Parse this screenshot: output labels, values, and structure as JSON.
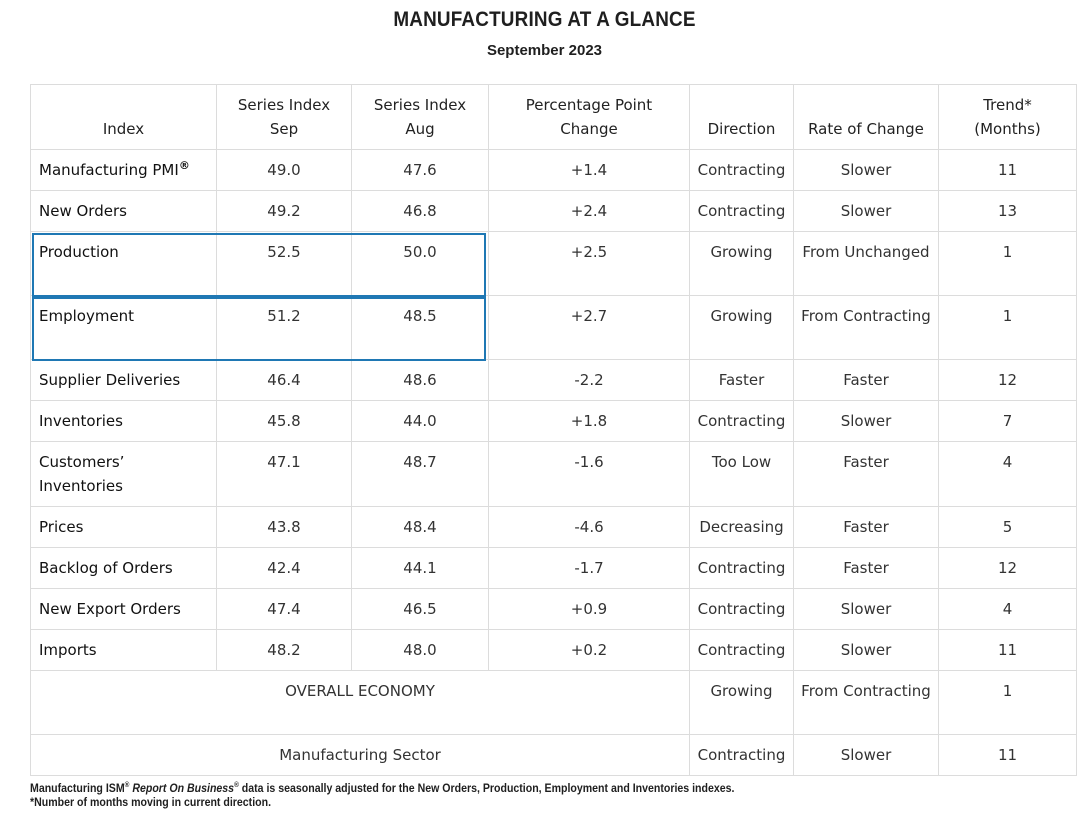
{
  "header": {
    "title": "MANUFACTURING AT A GLANCE",
    "subtitle": "September 2023"
  },
  "table": {
    "columns": {
      "index": "Index",
      "sep_line1": "Series Index",
      "sep_line2": "Sep",
      "aug_line1": "Series Index",
      "aug_line2": "Aug",
      "ppc_line1": "Percentage Point",
      "ppc_line2": "Change",
      "direction": "Direction",
      "rate": "Rate of Change",
      "trend_line1": "Trend*",
      "trend_line2": "(Months)"
    },
    "pmi": {
      "name": "Manufacturing PMI",
      "mark": "®",
      "sep": "49.0",
      "aug": "47.6",
      "change": "+1.4",
      "direction": "Contracting",
      "rate": "Slower",
      "trend": "11"
    },
    "rows": [
      {
        "name": "New Orders",
        "sep": "49.2",
        "aug": "46.8",
        "change": "+2.4",
        "direction": "Contracting",
        "rate": "Slower",
        "trend": "13"
      },
      {
        "name": "Production",
        "sep": "52.5",
        "aug": "50.0",
        "change": "+2.5",
        "direction": "Growing",
        "rate": "From Unchanged",
        "trend": "1"
      },
      {
        "name": "Employment",
        "sep": "51.2",
        "aug": "48.5",
        "change": "+2.7",
        "direction": "Growing",
        "rate": "From Contracting",
        "trend": "1"
      },
      {
        "name": "Supplier Deliveries",
        "sep": "46.4",
        "aug": "48.6",
        "change": "-2.2",
        "direction": "Faster",
        "rate": "Faster",
        "trend": "12"
      },
      {
        "name": "Inventories",
        "sep": "45.8",
        "aug": "44.0",
        "change": "+1.8",
        "direction": "Contracting",
        "rate": "Slower",
        "trend": "7"
      },
      {
        "name": "Customers’ Inventories",
        "sep": "47.1",
        "aug": "48.7",
        "change": "-1.6",
        "direction": "Too Low",
        "rate": "Faster",
        "trend": "4"
      },
      {
        "name": "Prices",
        "sep": "43.8",
        "aug": "48.4",
        "change": "-4.6",
        "direction": "Decreasing",
        "rate": "Faster",
        "trend": "5"
      },
      {
        "name": "Backlog of Orders",
        "sep": "42.4",
        "aug": "44.1",
        "change": "-1.7",
        "direction": "Contracting",
        "rate": "Faster",
        "trend": "12"
      },
      {
        "name": "New Export Orders",
        "sep": "47.4",
        "aug": "46.5",
        "change": "+0.9",
        "direction": "Contracting",
        "rate": "Slower",
        "trend": "4"
      },
      {
        "name": "Imports",
        "sep": "48.2",
        "aug": "48.0",
        "change": "+0.2",
        "direction": "Contracting",
        "rate": "Slower",
        "trend": "11"
      }
    ],
    "overall": {
      "name": "OVERALL ECONOMY",
      "direction": "Growing",
      "rate": "From Contracting",
      "trend": "1"
    },
    "sector": {
      "name": "Manufacturing Sector",
      "direction": "Contracting",
      "rate": "Slower",
      "trend": "11"
    }
  },
  "highlight_color": "#1f78b4",
  "footnotes": {
    "line1_a": "Manufacturing ISM",
    "mark1": "®",
    "report": "Report On Business",
    "mark2": "®",
    "line1_b": "data is seasonally adjusted for the New Orders, Production, Employment and Inventories indexes.",
    "line2": "*Number of months moving in current direction."
  }
}
